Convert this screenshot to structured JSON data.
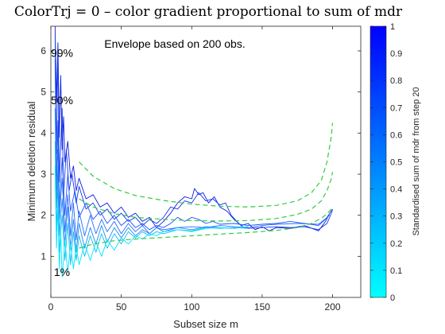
{
  "chart_data": {
    "type": "line",
    "title": "ColorTrj = 0 – color gradient proportional to sum of mdr",
    "xlabel": "Subset size m",
    "ylabel": "Minimum deletion residual",
    "xlim": [
      0,
      220
    ],
    "ylim": [
      0,
      6.6
    ],
    "x_ticks": [
      0,
      50,
      100,
      150,
      200
    ],
    "y_ticks": [
      1,
      2,
      3,
      4,
      5,
      6
    ],
    "annotation": "Envelope based on 200 obs.",
    "envelope_color": "#2ecc40",
    "envelopes": [
      {
        "label": "99%",
        "label_y": 5.95,
        "points": [
          [
            20,
            3.3
          ],
          [
            30,
            2.95
          ],
          [
            45,
            2.65
          ],
          [
            60,
            2.48
          ],
          [
            80,
            2.36
          ],
          [
            100,
            2.27
          ],
          [
            120,
            2.22
          ],
          [
            140,
            2.2
          ],
          [
            160,
            2.24
          ],
          [
            175,
            2.35
          ],
          [
            185,
            2.55
          ],
          [
            192,
            2.85
          ],
          [
            196,
            3.3
          ],
          [
            199,
            3.9
          ],
          [
            200,
            4.25
          ]
        ]
      },
      {
        "label": "50%",
        "label_y": 4.8,
        "points": [
          [
            20,
            2.4
          ],
          [
            30,
            2.2
          ],
          [
            45,
            2.04
          ],
          [
            60,
            1.95
          ],
          [
            80,
            1.9
          ],
          [
            100,
            1.87
          ],
          [
            120,
            1.86
          ],
          [
            140,
            1.87
          ],
          [
            160,
            1.92
          ],
          [
            175,
            2.02
          ],
          [
            185,
            2.15
          ],
          [
            192,
            2.35
          ],
          [
            196,
            2.6
          ],
          [
            199,
            2.88
          ],
          [
            200,
            3.05
          ]
        ]
      },
      {
        "label": "1%",
        "label_y": 0.62,
        "points": [
          [
            20,
            1.2
          ],
          [
            30,
            1.3
          ],
          [
            45,
            1.38
          ],
          [
            60,
            1.42
          ],
          [
            80,
            1.46
          ],
          [
            100,
            1.5
          ],
          [
            120,
            1.54
          ],
          [
            140,
            1.58
          ],
          [
            160,
            1.63
          ],
          [
            175,
            1.7
          ],
          [
            185,
            1.8
          ],
          [
            192,
            1.93
          ],
          [
            196,
            2.03
          ],
          [
            199,
            2.15
          ],
          [
            200,
            2.2
          ]
        ]
      }
    ],
    "series": [
      {
        "color": "#0a1ee0",
        "points": [
          [
            3,
            6.6
          ],
          [
            4,
            4.8
          ],
          [
            5,
            6.2
          ],
          [
            6,
            3.9
          ],
          [
            7,
            5.4
          ],
          [
            8,
            3.6
          ],
          [
            9,
            4.4
          ],
          [
            10,
            3.3
          ],
          [
            12,
            3.8
          ],
          [
            14,
            2.9
          ],
          [
            16,
            3.2
          ],
          [
            18,
            2.6
          ],
          [
            20,
            2.9
          ],
          [
            25,
            2.4
          ],
          [
            30,
            2.5
          ],
          [
            35,
            2.2
          ],
          [
            40,
            2.3
          ],
          [
            45,
            2.05
          ],
          [
            50,
            2.2
          ],
          [
            55,
            1.95
          ],
          [
            60,
            2.05
          ],
          [
            65,
            1.85
          ],
          [
            70,
            1.95
          ],
          [
            75,
            1.7
          ],
          [
            80,
            1.85
          ],
          [
            85,
            2.05
          ],
          [
            90,
            2.3
          ],
          [
            95,
            2.45
          ],
          [
            100,
            2.4
          ],
          [
            102,
            2.65
          ],
          [
            105,
            2.5
          ],
          [
            108,
            2.55
          ],
          [
            112,
            2.3
          ],
          [
            116,
            2.45
          ],
          [
            120,
            2.2
          ],
          [
            125,
            2.1
          ],
          [
            130,
            1.9
          ],
          [
            135,
            1.75
          ],
          [
            140,
            1.8
          ],
          [
            145,
            1.65
          ],
          [
            150,
            1.72
          ],
          [
            155,
            1.62
          ],
          [
            160,
            1.7
          ],
          [
            170,
            1.68
          ],
          [
            180,
            1.75
          ],
          [
            190,
            1.62
          ],
          [
            195,
            1.85
          ],
          [
            198,
            2.05
          ],
          [
            200,
            2.15
          ]
        ]
      },
      {
        "color": "#1535f0",
        "points": [
          [
            3,
            5.8
          ],
          [
            4,
            3.5
          ],
          [
            5,
            6.1
          ],
          [
            6,
            2.8
          ],
          [
            8,
            4.6
          ],
          [
            9,
            2.5
          ],
          [
            11,
            3.6
          ],
          [
            13,
            2.6
          ],
          [
            15,
            3.0
          ],
          [
            18,
            2.3
          ],
          [
            20,
            2.7
          ],
          [
            25,
            2.15
          ],
          [
            30,
            2.3
          ],
          [
            35,
            2.0
          ],
          [
            40,
            2.15
          ],
          [
            45,
            1.9
          ],
          [
            50,
            2.05
          ],
          [
            55,
            1.85
          ],
          [
            60,
            1.95
          ],
          [
            65,
            1.75
          ],
          [
            70,
            1.9
          ],
          [
            75,
            1.8
          ],
          [
            80,
            1.95
          ],
          [
            85,
            2.2
          ],
          [
            90,
            2.15
          ],
          [
            95,
            2.35
          ],
          [
            100,
            2.3
          ],
          [
            105,
            2.55
          ],
          [
            110,
            2.35
          ],
          [
            115,
            2.4
          ],
          [
            120,
            2.25
          ],
          [
            124,
            2.3
          ],
          [
            128,
            2.0
          ],
          [
            132,
            1.85
          ],
          [
            136,
            1.72
          ],
          [
            140,
            1.68
          ],
          [
            150,
            1.7
          ],
          [
            160,
            1.72
          ],
          [
            170,
            1.7
          ],
          [
            180,
            1.72
          ],
          [
            190,
            1.65
          ],
          [
            196,
            1.8
          ],
          [
            200,
            2.12
          ]
        ]
      },
      {
        "color": "#1f56f8",
        "points": [
          [
            3,
            6.4
          ],
          [
            4,
            2.6
          ],
          [
            5,
            4.3
          ],
          [
            6,
            2.2
          ],
          [
            8,
            3.4
          ],
          [
            10,
            2.0
          ],
          [
            12,
            3.0
          ],
          [
            14,
            2.1
          ],
          [
            17,
            2.6
          ],
          [
            20,
            1.95
          ],
          [
            25,
            2.3
          ],
          [
            30,
            1.9
          ],
          [
            35,
            2.1
          ],
          [
            40,
            1.8
          ],
          [
            45,
            2.0
          ],
          [
            50,
            1.75
          ],
          [
            55,
            1.9
          ],
          [
            60,
            1.7
          ],
          [
            65,
            1.8
          ],
          [
            70,
            1.65
          ],
          [
            75,
            1.75
          ],
          [
            80,
            1.7
          ],
          [
            85,
            1.8
          ],
          [
            90,
            1.95
          ],
          [
            95,
            1.85
          ],
          [
            100,
            1.95
          ],
          [
            105,
            1.9
          ],
          [
            110,
            1.8
          ],
          [
            115,
            1.85
          ],
          [
            120,
            1.78
          ],
          [
            130,
            1.8
          ],
          [
            140,
            1.75
          ],
          [
            150,
            1.78
          ],
          [
            160,
            1.8
          ],
          [
            170,
            1.85
          ],
          [
            180,
            1.8
          ],
          [
            190,
            1.75
          ],
          [
            195,
            1.9
          ],
          [
            199,
            2.1
          ]
        ]
      },
      {
        "color": "#2a6cff",
        "points": [
          [
            3,
            5.6
          ],
          [
            4,
            3.0
          ],
          [
            5,
            3.6
          ],
          [
            6,
            1.9
          ],
          [
            8,
            2.9
          ],
          [
            10,
            1.6
          ],
          [
            12,
            2.5
          ],
          [
            14,
            1.5
          ],
          [
            16,
            2.3
          ],
          [
            18,
            1.4
          ],
          [
            20,
            2.1
          ],
          [
            24,
            1.5
          ],
          [
            28,
            2.0
          ],
          [
            32,
            1.55
          ],
          [
            36,
            1.9
          ],
          [
            40,
            1.6
          ],
          [
            45,
            1.85
          ],
          [
            50,
            1.55
          ],
          [
            55,
            1.8
          ],
          [
            60,
            1.6
          ],
          [
            65,
            1.75
          ],
          [
            70,
            1.55
          ],
          [
            75,
            1.7
          ],
          [
            80,
            1.65
          ],
          [
            90,
            1.7
          ],
          [
            100,
            1.72
          ],
          [
            110,
            1.7
          ],
          [
            120,
            1.75
          ],
          [
            130,
            1.72
          ],
          [
            140,
            1.7
          ],
          [
            150,
            1.75
          ],
          [
            160,
            1.78
          ],
          [
            175,
            1.8
          ],
          [
            190,
            1.78
          ],
          [
            198,
            2.0
          ]
        ]
      },
      {
        "color": "#1e8af5",
        "points": [
          [
            3,
            4.6
          ],
          [
            4,
            2.2
          ],
          [
            5,
            3.2
          ],
          [
            6,
            1.5
          ],
          [
            8,
            2.4
          ],
          [
            10,
            1.3
          ],
          [
            12,
            2.2
          ],
          [
            14,
            1.2
          ],
          [
            16,
            1.9
          ],
          [
            18,
            1.1
          ],
          [
            20,
            1.8
          ],
          [
            24,
            1.2
          ],
          [
            28,
            1.7
          ],
          [
            32,
            1.3
          ],
          [
            36,
            1.75
          ],
          [
            40,
            1.35
          ],
          [
            45,
            1.7
          ],
          [
            50,
            1.45
          ],
          [
            55,
            1.7
          ],
          [
            60,
            1.5
          ],
          [
            65,
            1.65
          ],
          [
            70,
            1.55
          ],
          [
            75,
            1.7
          ],
          [
            80,
            1.6
          ],
          [
            90,
            1.7
          ],
          [
            100,
            1.65
          ],
          [
            110,
            1.72
          ],
          [
            120,
            1.7
          ],
          [
            130,
            1.68
          ],
          [
            140,
            1.72
          ]
        ]
      },
      {
        "color": "#0fbdf0",
        "points": [
          [
            3,
            3.8
          ],
          [
            4,
            1.6
          ],
          [
            5,
            2.8
          ],
          [
            6,
            1.1
          ],
          [
            8,
            2.0
          ],
          [
            10,
            0.9
          ],
          [
            12,
            1.8
          ],
          [
            14,
            0.8
          ],
          [
            16,
            1.6
          ],
          [
            18,
            0.9
          ],
          [
            20,
            1.5
          ],
          [
            24,
            1.0
          ],
          [
            28,
            1.5
          ],
          [
            32,
            1.1
          ],
          [
            36,
            1.55
          ],
          [
            40,
            1.2
          ],
          [
            45,
            1.55
          ],
          [
            50,
            1.3
          ],
          [
            55,
            1.6
          ],
          [
            60,
            1.45
          ],
          [
            65,
            1.6
          ],
          [
            70,
            1.5
          ],
          [
            75,
            1.6
          ],
          [
            80,
            1.55
          ],
          [
            90,
            1.65
          ],
          [
            100,
            1.62
          ],
          [
            110,
            1.7
          ],
          [
            120,
            1.68
          ],
          [
            130,
            1.7
          ],
          [
            140,
            1.68
          ]
        ]
      },
      {
        "color": "#00e5ff",
        "points": [
          [
            3,
            3.2
          ],
          [
            4,
            1.2
          ],
          [
            5,
            2.2
          ],
          [
            6,
            0.7
          ],
          [
            7,
            1.6
          ],
          [
            8,
            0.5
          ],
          [
            10,
            1.4
          ],
          [
            12,
            0.6
          ],
          [
            14,
            1.3
          ],
          [
            16,
            0.7
          ],
          [
            18,
            1.25
          ],
          [
            20,
            0.8
          ],
          [
            24,
            1.3
          ],
          [
            28,
            0.9
          ],
          [
            32,
            1.35
          ],
          [
            36,
            1.0
          ],
          [
            40,
            1.4
          ],
          [
            45,
            1.15
          ],
          [
            50,
            1.45
          ],
          [
            55,
            1.3
          ],
          [
            60,
            1.5
          ],
          [
            65,
            1.42
          ],
          [
            70,
            1.55
          ],
          [
            75,
            1.5
          ],
          [
            80,
            1.6
          ],
          [
            90,
            1.65
          ],
          [
            100,
            1.6
          ],
          [
            110,
            1.68
          ],
          [
            120,
            1.7
          ],
          [
            130,
            1.68
          ],
          [
            140,
            1.72
          ]
        ]
      }
    ],
    "colorbar": {
      "label": "Standardised sum of mdr from step 20",
      "min": 0,
      "max": 1,
      "ticks": [
        0,
        0.1,
        0.2,
        0.3,
        0.4,
        0.5,
        0.6,
        0.7,
        0.8,
        0.9,
        1
      ],
      "color_low": "#00ffff",
      "color_high": "#0000ff"
    }
  }
}
